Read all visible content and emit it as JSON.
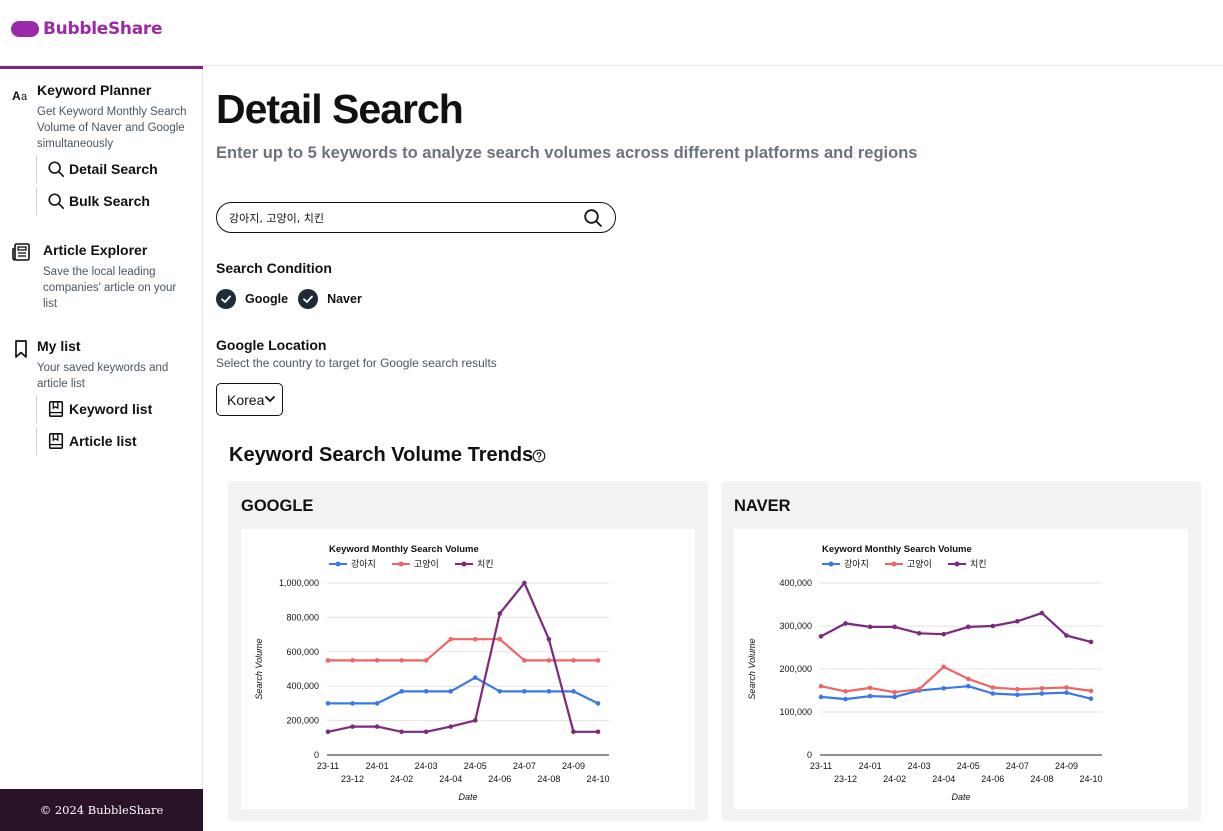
{
  "app": {
    "name": "BubbleShare",
    "brand_color": "#9b2aa8"
  },
  "sidebar": {
    "sections": [
      {
        "title": "Keyword Planner",
        "icon": "font-icon",
        "desc": "Get Keyword Monthly Search Volume of Naver and Google simultaneously",
        "items": [
          {
            "label": "Detail Search",
            "icon": "search-icon"
          },
          {
            "label": "Bulk Search",
            "icon": "search-icon"
          }
        ]
      },
      {
        "title": "Article Explorer",
        "icon": "newspaper-icon",
        "desc": "Save the local leading companies' article on your list",
        "items": []
      },
      {
        "title": "My list",
        "icon": "bookmark-icon",
        "desc": "Your saved keywords and article list",
        "items": [
          {
            "label": "Keyword list",
            "icon": "book-icon"
          },
          {
            "label": "Article list",
            "icon": "book-icon"
          }
        ]
      }
    ],
    "footer": "© 2024 BubbleShare"
  },
  "main": {
    "title": "Detail Search",
    "subtitle": "Enter up to 5 keywords to analyze search volumes across different platforms and regions",
    "search": {
      "value": "강아지, 고양이, 치킨"
    },
    "search_condition": {
      "label": "Search Condition",
      "options": [
        {
          "label": "Google",
          "checked": true
        },
        {
          "label": "Naver",
          "checked": true
        }
      ]
    },
    "google_location": {
      "label": "Google Location",
      "desc": "Select the country to target for Google search results",
      "selected": "Korea"
    },
    "trends": {
      "title": "Keyword Search Volume Trends"
    },
    "panels": [
      {
        "title": "GOOGLE"
      },
      {
        "title": "NAVER"
      }
    ]
  },
  "chart_data": [
    {
      "type": "line",
      "panel": "GOOGLE",
      "title": "Keyword Monthly Search Volume",
      "xlabel": "Date",
      "ylabel": "Search Volume",
      "x": [
        "23-11",
        "23-12",
        "24-01",
        "24-02",
        "24-03",
        "24-04",
        "24-05",
        "24-06",
        "24-07",
        "24-08",
        "24-09",
        "24-10"
      ],
      "ylim": [
        0,
        1000000
      ],
      "yticks": [
        0,
        200000,
        400000,
        600000,
        800000,
        1000000
      ],
      "ytick_labels": [
        "0",
        "200,000",
        "400,000",
        "600,000",
        "800,000",
        "1,000,000"
      ],
      "grid": true,
      "legend": "top-left",
      "series": [
        {
          "name": "강아지",
          "color": "#3b78e7",
          "values": [
            300000,
            300000,
            300000,
            370000,
            370000,
            370000,
            450000,
            370000,
            370000,
            370000,
            370000,
            300000
          ]
        },
        {
          "name": "고양이",
          "color": "#ef6464",
          "values": [
            550000,
            550000,
            550000,
            550000,
            550000,
            673000,
            673000,
            673000,
            550000,
            550000,
            550000,
            550000
          ]
        },
        {
          "name": "치킨",
          "color": "#7b2a7f",
          "values": [
            135000,
            165000,
            165000,
            135000,
            135000,
            165000,
            201000,
            823000,
            1000000,
            673000,
            135000,
            135000
          ]
        }
      ]
    },
    {
      "type": "line",
      "panel": "NAVER",
      "title": "Keyword Monthly Search Volume",
      "xlabel": "Date",
      "ylabel": "Search Volume",
      "x": [
        "23-11",
        "23-12",
        "24-01",
        "24-02",
        "24-03",
        "24-04",
        "24-05",
        "24-06",
        "24-07",
        "24-08",
        "24-09",
        "24-10"
      ],
      "ylim": [
        0,
        400000
      ],
      "yticks": [
        0,
        100000,
        200000,
        300000,
        400000
      ],
      "ytick_labels": [
        "0",
        "100,000",
        "200,000",
        "300,000",
        "400,000"
      ],
      "grid": true,
      "legend": "top-left",
      "series": [
        {
          "name": "강아지",
          "color": "#3b78e7",
          "values": [
            135000,
            130000,
            137000,
            135000,
            150000,
            155000,
            160000,
            143000,
            140000,
            143000,
            145000,
            131000
          ]
        },
        {
          "name": "고양이",
          "color": "#ef6464",
          "values": [
            160000,
            148000,
            156000,
            146000,
            153000,
            205000,
            177000,
            157000,
            153000,
            155000,
            157000,
            149000
          ]
        },
        {
          "name": "치킨",
          "color": "#7b2a7f",
          "values": [
            276000,
            306000,
            298000,
            298000,
            283000,
            281000,
            298000,
            300000,
            311000,
            330000,
            278000,
            263000
          ]
        }
      ]
    }
  ]
}
